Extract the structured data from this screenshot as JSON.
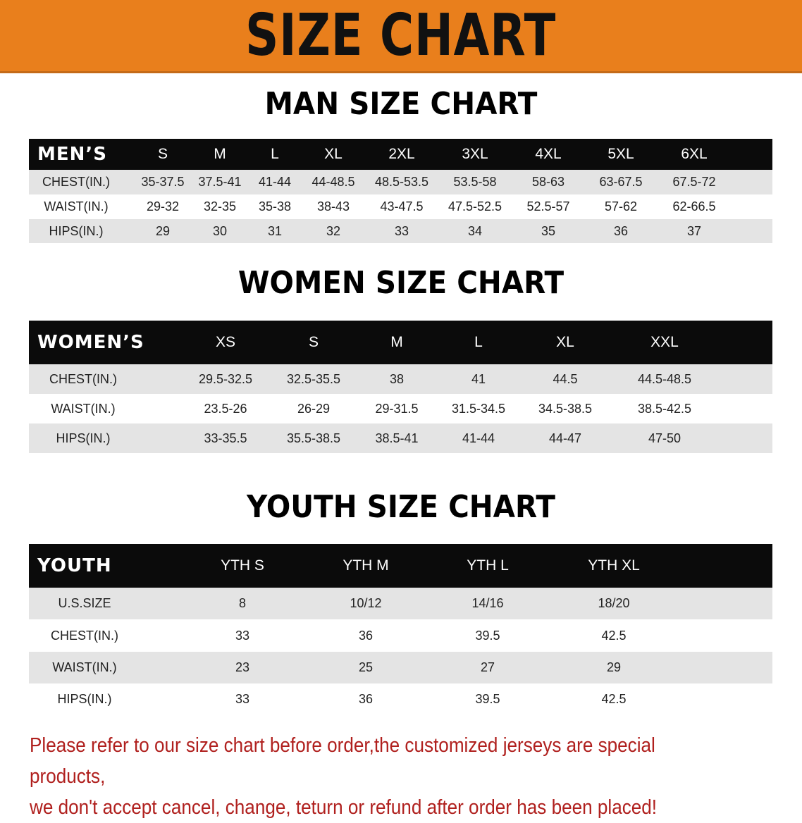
{
  "title": "SIZE CHART",
  "men": {
    "heading": "MAN SIZE CHART",
    "label": "MEN’S",
    "sizes": [
      "S",
      "M",
      "L",
      "XL",
      "2XL",
      "3XL",
      "4XL",
      "5XL",
      "6XL"
    ],
    "rows": [
      {
        "label": "CHEST(IN.)",
        "values": [
          "35-37.5",
          "37.5-41",
          "41-44",
          "44-48.5",
          "48.5-53.5",
          "53.5-58",
          "58-63",
          "63-67.5",
          "67.5-72"
        ]
      },
      {
        "label": "WAIST(IN.)",
        "values": [
          "29-32",
          "32-35",
          "35-38",
          "38-43",
          "43-47.5",
          "47.5-52.5",
          "52.5-57",
          "57-62",
          "62-66.5"
        ]
      },
      {
        "label": "HIPS(IN.)",
        "values": [
          "29",
          "30",
          "31",
          "32",
          "33",
          "34",
          "35",
          "36",
          "37"
        ]
      }
    ]
  },
  "women": {
    "heading": "WOMEN SIZE CHART",
    "label": "WOMEN’S",
    "sizes": [
      "XS",
      "S",
      "M",
      "L",
      "XL",
      "XXL"
    ],
    "rows": [
      {
        "label": "CHEST(IN.)",
        "values": [
          "29.5-32.5",
          "32.5-35.5",
          "38",
          "41",
          "44.5",
          "44.5-48.5"
        ]
      },
      {
        "label": "WAIST(IN.)",
        "values": [
          "23.5-26",
          "26-29",
          "29-31.5",
          "31.5-34.5",
          "34.5-38.5",
          "38.5-42.5"
        ]
      },
      {
        "label": "HIPS(IN.)",
        "values": [
          "33-35.5",
          "35.5-38.5",
          "38.5-41",
          "41-44",
          "44-47",
          "47-50"
        ]
      }
    ]
  },
  "youth": {
    "heading": "YOUTH SIZE CHART",
    "label": "YOUTH",
    "sizes": [
      "YTH S",
      "YTH M",
      "YTH L",
      "YTH XL"
    ],
    "rows": [
      {
        "label": "U.S.SIZE",
        "values": [
          "8",
          "10/12",
          "14/16",
          "18/20"
        ]
      },
      {
        "label": "CHEST(IN.)",
        "values": [
          "33",
          "36",
          "39.5",
          "42.5"
        ]
      },
      {
        "label": "WAIST(IN.)",
        "values": [
          "23",
          "25",
          "27",
          "29"
        ]
      },
      {
        "label": "HIPS(IN.)",
        "values": [
          "33",
          "36",
          "39.5",
          "42.5"
        ]
      }
    ]
  },
  "notice": [
    "Please refer to our size chart before order,the customized jerseys are special products,",
    "we don't accept cancel, change, teturn or refund after order has been placed!"
  ],
  "colors": {
    "banner": "#e97f1c",
    "header_row": "#0b0b0b",
    "notice": "#b0201e"
  }
}
